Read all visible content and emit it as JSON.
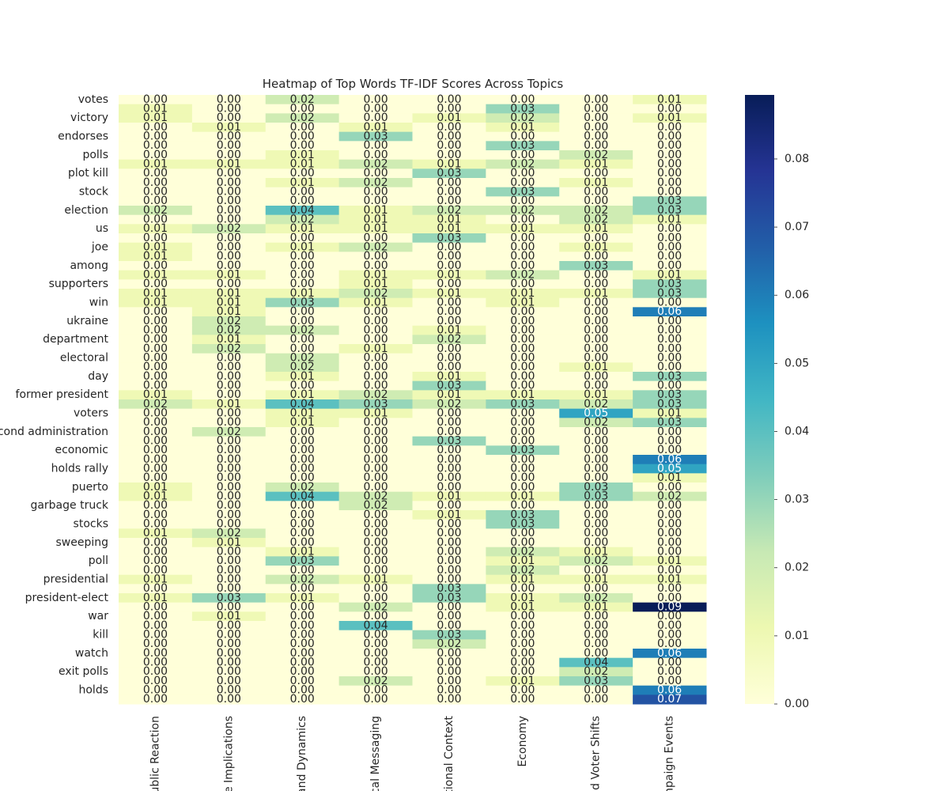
{
  "chart_data": {
    "type": "heatmap",
    "title": "Heatmap of Top Words TF-IDF Scores Across Topics",
    "columns": [
      "ublic Reaction",
      "ce Implications",
      "and Dynamics",
      "cal Messaging",
      "tional Context",
      "Economy",
      "nd Voter Shifts",
      "mpaign Events"
    ],
    "categories": [
      "votes",
      null,
      "victory",
      null,
      "endorses",
      null,
      "polls",
      null,
      "plot kill",
      null,
      "stock",
      null,
      "election",
      null,
      "us",
      null,
      "joe",
      null,
      "among",
      null,
      "supporters",
      null,
      "win",
      null,
      "ukraine",
      null,
      "department",
      null,
      "electoral",
      null,
      "day",
      null,
      "former president",
      null,
      "voters",
      null,
      "econd administration",
      null,
      "economic",
      null,
      "holds rally",
      null,
      "puerto",
      null,
      "garbage truck",
      null,
      "stocks",
      null,
      "sweeping",
      null,
      "poll",
      null,
      "presidential",
      null,
      "president-elect",
      null,
      "war",
      null,
      "kill",
      null,
      "watch",
      null,
      "exit polls",
      null,
      "holds",
      null
    ],
    "values": [
      [
        0,
        0,
        0.02,
        0,
        0,
        0,
        0,
        0.01
      ],
      [
        0.01,
        0,
        0,
        0,
        0,
        0.03,
        0,
        0
      ],
      [
        0.01,
        0,
        0.02,
        0,
        0.01,
        0.02,
        0,
        0.01
      ],
      [
        0,
        0.01,
        0,
        0.01,
        0,
        0.01,
        0,
        0
      ],
      [
        0,
        0,
        0,
        0.03,
        0,
        0,
        0,
        0
      ],
      [
        0,
        0,
        0,
        0,
        0,
        0.03,
        0,
        0
      ],
      [
        0,
        0,
        0.01,
        0,
        0,
        0,
        0.02,
        0
      ],
      [
        0.01,
        0.01,
        0.01,
        0.02,
        0.01,
        0.02,
        0.01,
        0
      ],
      [
        0,
        0,
        0,
        0,
        0.03,
        0,
        0,
        0
      ],
      [
        0,
        0,
        0.01,
        0.02,
        0,
        0,
        0.01,
        0
      ],
      [
        0,
        0,
        0,
        0,
        0,
        0.03,
        0,
        0
      ],
      [
        0,
        0,
        0,
        0,
        0,
        0,
        0,
        0.03
      ],
      [
        0.02,
        0,
        0.04,
        0.01,
        0.02,
        0.02,
        0.02,
        0.03
      ],
      [
        0,
        0,
        0.02,
        0.01,
        0.01,
        0,
        0.02,
        0.01
      ],
      [
        0.01,
        0.02,
        0.01,
        0.01,
        0.01,
        0.01,
        0.01,
        0
      ],
      [
        0,
        0,
        0,
        0,
        0.03,
        0,
        0,
        0
      ],
      [
        0.01,
        0,
        0.01,
        0.02,
        0,
        0,
        0.01,
        0
      ],
      [
        0.01,
        0,
        0,
        0,
        0,
        0,
        0,
        0
      ],
      [
        0,
        0,
        0,
        0,
        0,
        0,
        0.03,
        0
      ],
      [
        0.01,
        0.01,
        0,
        0.01,
        0.01,
        0.02,
        0,
        0.01
      ],
      [
        0,
        0,
        0,
        0.01,
        0,
        0,
        0,
        0.03
      ],
      [
        0.01,
        0.01,
        0.01,
        0.02,
        0.01,
        0.01,
        0.01,
        0.03
      ],
      [
        0.01,
        0.01,
        0.03,
        0.01,
        0,
        0.01,
        0,
        0
      ],
      [
        0,
        0.01,
        0,
        0,
        0,
        0,
        0,
        0.06
      ],
      [
        0,
        0.02,
        0,
        0,
        0,
        0,
        0,
        0
      ],
      [
        0,
        0.02,
        0.02,
        0,
        0.01,
        0,
        0,
        0
      ],
      [
        0,
        0.01,
        0,
        0,
        0.02,
        0,
        0,
        0
      ],
      [
        0,
        0.02,
        0,
        0.01,
        0,
        0,
        0,
        0
      ],
      [
        0,
        0,
        0.02,
        0,
        0,
        0,
        0,
        0
      ],
      [
        0,
        0,
        0.02,
        0,
        0,
        0,
        0.01,
        0
      ],
      [
        0,
        0,
        0.01,
        0,
        0.01,
        0,
        0,
        0.03
      ],
      [
        0,
        0,
        0,
        0,
        0.03,
        0,
        0,
        0
      ],
      [
        0.01,
        0,
        0.01,
        0.02,
        0.01,
        0.01,
        0.01,
        0.03
      ],
      [
        0.02,
        0.01,
        0.04,
        0.03,
        0.02,
        0.03,
        0.02,
        0.03
      ],
      [
        0,
        0,
        0.01,
        0.01,
        0,
        0,
        0.05,
        0.01
      ],
      [
        0,
        0,
        0.01,
        0,
        0,
        0,
        0.02,
        0.03
      ],
      [
        0,
        0.02,
        0,
        0,
        0,
        0,
        0,
        0
      ],
      [
        0,
        0,
        0,
        0,
        0.03,
        0,
        0,
        0
      ],
      [
        0,
        0,
        0,
        0,
        0,
        0.03,
        0,
        0
      ],
      [
        0,
        0,
        0,
        0,
        0,
        0,
        0,
        0.06
      ],
      [
        0,
        0,
        0,
        0,
        0,
        0,
        0,
        0.05
      ],
      [
        0,
        0,
        0,
        0,
        0,
        0,
        0,
        0.01
      ],
      [
        0.01,
        0,
        0.02,
        0,
        0,
        0,
        0.03,
        0
      ],
      [
        0.01,
        0,
        0.04,
        0.02,
        0.01,
        0.01,
        0.03,
        0.02
      ],
      [
        0,
        0,
        0,
        0.02,
        0,
        0,
        0,
        0
      ],
      [
        0,
        0,
        0,
        0,
        0.01,
        0.03,
        0,
        0
      ],
      [
        0,
        0,
        0,
        0,
        0,
        0.03,
        0,
        0
      ],
      [
        0.01,
        0.02,
        0,
        0,
        0,
        0,
        0,
        0
      ],
      [
        0,
        0.01,
        0,
        0,
        0,
        0,
        0,
        0
      ],
      [
        0,
        0,
        0.01,
        0,
        0,
        0.02,
        0.01,
        0
      ],
      [
        0,
        0,
        0.03,
        0,
        0,
        0.01,
        0.02,
        0.01
      ],
      [
        0,
        0,
        0,
        0,
        0,
        0.02,
        0,
        0
      ],
      [
        0.01,
        0,
        0.02,
        0.01,
        0,
        0.01,
        0.01,
        0.01
      ],
      [
        0,
        0,
        0,
        0,
        0.03,
        0,
        0,
        0
      ],
      [
        0.01,
        0.03,
        0.01,
        0,
        0.03,
        0.01,
        0.02,
        0
      ],
      [
        0,
        0,
        0,
        0.02,
        0,
        0.01,
        0.01,
        0.09
      ],
      [
        0,
        0.01,
        0,
        0,
        0,
        0,
        0,
        0
      ],
      [
        0,
        0,
        0,
        0.04,
        0,
        0,
        0,
        0
      ],
      [
        0,
        0,
        0,
        0,
        0.03,
        0,
        0,
        0
      ],
      [
        0,
        0,
        0,
        0,
        0.02,
        0,
        0,
        0
      ],
      [
        0,
        0,
        0,
        0,
        0,
        0,
        0,
        0.06
      ],
      [
        0,
        0,
        0,
        0,
        0,
        0,
        0.04,
        0
      ],
      [
        0,
        0,
        0,
        0,
        0,
        0,
        0.02,
        0
      ],
      [
        0,
        0,
        0,
        0.02,
        0,
        0.01,
        0.03,
        0
      ],
      [
        0,
        0,
        0,
        0,
        0,
        0,
        0,
        0.06
      ],
      [
        0,
        0,
        0,
        0,
        0,
        0,
        0,
        0.07
      ]
    ],
    "value_labels": [
      [
        "0.00",
        "0.00",
        "0.02",
        "0.00",
        "0.00",
        "0.00",
        "0.00",
        "0.01"
      ],
      [
        "0.01",
        "0.00",
        "0.00",
        "0.00",
        "0.00",
        "0.03",
        "0.00",
        "0.00"
      ],
      [
        "0.01",
        "0.00",
        "0.02",
        "0.00",
        "0.01",
        "0.02",
        "0.00",
        "0.01"
      ],
      [
        "0.00",
        "0.01",
        "0.00",
        "0.01",
        "0.00",
        "0.01",
        "0.00",
        "0.00"
      ],
      [
        "0.00",
        "0.00",
        "0.00",
        "0.03",
        "0.00",
        "0.00",
        "0.00",
        "0.00"
      ],
      [
        "0.00",
        "0.00",
        "0.00",
        "0.00",
        "0.00",
        "0.03",
        "0.00",
        "0.00"
      ],
      [
        "0.00",
        "0.00",
        "0.01",
        "0.00",
        "0.00",
        "0.00",
        "0.02",
        "0.00"
      ],
      [
        "0.01",
        "0.01",
        "0.01",
        "0.02",
        "0.01",
        "0.02",
        "0.01",
        "0.00"
      ],
      [
        "0.00",
        "0.00",
        "0.00",
        "0.00",
        "0.03",
        "0.00",
        "0.00",
        "0.00"
      ],
      [
        "0.00",
        "0.00",
        "0.01",
        "0.02",
        "0.00",
        "0.00",
        "0.01",
        "0.00"
      ],
      [
        "0.00",
        "0.00",
        "0.00",
        "0.00",
        "0.00",
        "0.03",
        "0.00",
        "0.00"
      ],
      [
        "0.00",
        "0.00",
        "0.00",
        "0.00",
        "0.00",
        "0.00",
        "0.00",
        "0.03"
      ],
      [
        "0.02",
        "0.00",
        "0.04",
        "0.01",
        "0.02",
        "0.02",
        "0.02",
        "0.03"
      ],
      [
        "0.00",
        "0.00",
        "0.02",
        "0.01",
        "0.01",
        "0.00",
        "0.02",
        "0.01"
      ],
      [
        "0.01",
        "0.02",
        "0.01",
        "0.01",
        "0.01",
        "0.01",
        "0.01",
        "0.00"
      ],
      [
        "0.00",
        "0.00",
        "0.00",
        "0.00",
        "0.03",
        "0.00",
        "0.00",
        "0.00"
      ],
      [
        "0.01",
        "0.00",
        "0.01",
        "0.02",
        "0.00",
        "0.00",
        "0.01",
        "0.00"
      ],
      [
        "0.01",
        "0.00",
        "0.00",
        "0.00",
        "0.00",
        "0.00",
        "0.00",
        "0.00"
      ],
      [
        "0.00",
        "0.00",
        "0.00",
        "0.00",
        "0.00",
        "0.00",
        "0.03",
        "0.00"
      ],
      [
        "0.01",
        "0.01",
        "0.00",
        "0.01",
        "0.01",
        "0.02",
        "0.00",
        "0.01"
      ],
      [
        "0.00",
        "0.00",
        "0.00",
        "0.01",
        "0.00",
        "0.00",
        "0.00",
        "0.03"
      ],
      [
        "0.01",
        "0.01",
        "0.01",
        "0.02",
        "0.01",
        "0.01",
        "0.01",
        "0.03"
      ],
      [
        "0.01",
        "0.01",
        "0.03",
        "0.01",
        "0.00",
        "0.01",
        "0.00",
        "0.00"
      ],
      [
        "0.00",
        "0.01",
        "0.00",
        "0.00",
        "0.00",
        "0.00",
        "0.00",
        "0.06"
      ],
      [
        "0.00",
        "0.02",
        "0.00",
        "0.00",
        "0.00",
        "0.00",
        "0.00",
        "0.00"
      ],
      [
        "0.00",
        "0.02",
        "0.02",
        "0.00",
        "0.01",
        "0.00",
        "0.00",
        "0.00"
      ],
      [
        "0.00",
        "0.01",
        "0.00",
        "0.00",
        "0.02",
        "0.00",
        "0.00",
        "0.00"
      ],
      [
        "0.00",
        "0.02",
        "0.00",
        "0.01",
        "0.00",
        "0.00",
        "0.00",
        "0.00"
      ],
      [
        "0.00",
        "0.00",
        "0.02",
        "0.00",
        "0.00",
        "0.00",
        "0.00",
        "0.00"
      ],
      [
        "0.00",
        "0.00",
        "0.02",
        "0.00",
        "0.00",
        "0.00",
        "0.01",
        "0.00"
      ],
      [
        "0.00",
        "0.00",
        "0.01",
        "0.00",
        "0.01",
        "0.00",
        "0.00",
        "0.03"
      ],
      [
        "0.00",
        "0.00",
        "0.00",
        "0.00",
        "0.03",
        "0.00",
        "0.00",
        "0.00"
      ],
      [
        "0.01",
        "0.00",
        "0.01",
        "0.02",
        "0.01",
        "0.01",
        "0.01",
        "0.03"
      ],
      [
        "0.02",
        "0.01",
        "0.04",
        "0.03",
        "0.02",
        "0.03",
        "0.02",
        "0.03"
      ],
      [
        "0.00",
        "0.00",
        "0.01",
        "0.01",
        "0.00",
        "0.00",
        "0.05",
        "0.01"
      ],
      [
        "0.00",
        "0.00",
        "0.01",
        "0.00",
        "0.00",
        "0.00",
        "0.02",
        "0.03"
      ],
      [
        "0.00",
        "0.02",
        "0.00",
        "0.00",
        "0.00",
        "0.00",
        "0.00",
        "0.00"
      ],
      [
        "0.00",
        "0.00",
        "0.00",
        "0.00",
        "0.03",
        "0.00",
        "0.00",
        "0.00"
      ],
      [
        "0.00",
        "0.00",
        "0.00",
        "0.00",
        "0.00",
        "0.03",
        "0.00",
        "0.00"
      ],
      [
        "0.00",
        "0.00",
        "0.00",
        "0.00",
        "0.00",
        "0.00",
        "0.00",
        "0.06"
      ],
      [
        "0.00",
        "0.00",
        "0.00",
        "0.00",
        "0.00",
        "0.00",
        "0.00",
        "0.05"
      ],
      [
        "0.00",
        "0.00",
        "0.00",
        "0.00",
        "0.00",
        "0.00",
        "0.00",
        "0.01"
      ],
      [
        "0.01",
        "0.00",
        "0.02",
        "0.00",
        "0.00",
        "0.00",
        "0.03",
        "0.00"
      ],
      [
        "0.01",
        "0.00",
        "0.04",
        "0.02",
        "0.01",
        "0.01",
        "0.03",
        "0.02"
      ],
      [
        "0.00",
        "0.00",
        "0.00",
        "0.02",
        "0.00",
        "0.00",
        "0.00",
        "0.00"
      ],
      [
        "0.00",
        "0.00",
        "0.00",
        "0.00",
        "0.01",
        "0.03",
        "0.00",
        "0.00"
      ],
      [
        "0.00",
        "0.00",
        "0.00",
        "0.00",
        "0.00",
        "0.03",
        "0.00",
        "0.00"
      ],
      [
        "0.01",
        "0.02",
        "0.00",
        "0.00",
        "0.00",
        "0.00",
        "0.00",
        "0.00"
      ],
      [
        "0.00",
        "0.01",
        "0.00",
        "0.00",
        "0.00",
        "0.00",
        "0.00",
        "0.00"
      ],
      [
        "0.00",
        "0.00",
        "0.01",
        "0.00",
        "0.00",
        "0.02",
        "0.01",
        "0.00"
      ],
      [
        "0.00",
        "0.00",
        "0.03",
        "0.00",
        "0.00",
        "0.01",
        "0.02",
        "0.01"
      ],
      [
        "0.00",
        "0.00",
        "0.00",
        "0.00",
        "0.00",
        "0.02",
        "0.00",
        "0.00"
      ],
      [
        "0.01",
        "0.00",
        "0.02",
        "0.01",
        "0.00",
        "0.01",
        "0.01",
        "0.01"
      ],
      [
        "0.00",
        "0.00",
        "0.00",
        "0.00",
        "0.03",
        "0.00",
        "0.00",
        "0.00"
      ],
      [
        "0.01",
        "0.03",
        "0.01",
        "0.00",
        "0.03",
        "0.01",
        "0.02",
        "0.00"
      ],
      [
        "0.00",
        "0.00",
        "0.00",
        "0.02",
        "0.00",
        "0.01",
        "0.01",
        "0.09"
      ],
      [
        "0.00",
        "0.01",
        "0.00",
        "0.00",
        "0.00",
        "0.00",
        "0.00",
        "0.00"
      ],
      [
        "0.00",
        "0.00",
        "0.00",
        "0.04",
        "0.00",
        "0.00",
        "0.00",
        "0.00"
      ],
      [
        "0.00",
        "0.00",
        "0.00",
        "0.00",
        "0.03",
        "0.00",
        "0.00",
        "0.00"
      ],
      [
        "0.00",
        "0.00",
        "0.00",
        "0.00",
        "0.02",
        "0.00",
        "0.00",
        "0.00"
      ],
      [
        "0.00",
        "0.00",
        "0.00",
        "0.00",
        "0.00",
        "0.00",
        "0.00",
        "0.06"
      ],
      [
        "0.00",
        "0.00",
        "0.00",
        "0.00",
        "0.00",
        "0.00",
        "0.04",
        "0.00"
      ],
      [
        "0.00",
        "0.00",
        "0.00",
        "0.00",
        "0.00",
        "0.00",
        "0.02",
        "0.00"
      ],
      [
        "0.00",
        "0.00",
        "0.00",
        "0.02",
        "0.00",
        "0.01",
        "0.03",
        "0.00"
      ],
      [
        "0.00",
        "0.00",
        "0.00",
        "0.00",
        "0.00",
        "0.00",
        "0.00",
        "0.06"
      ],
      [
        "0.00",
        "0.00",
        "0.00",
        "0.00",
        "0.00",
        "0.00",
        "0.00",
        "0.07"
      ]
    ],
    "colormap": "YlGnBu",
    "clim": [
      0,
      0.0894
    ],
    "cticks": [
      {
        "value": 0,
        "label": "0.00"
      },
      {
        "value": 0.01,
        "label": "0.01"
      },
      {
        "value": 0.02,
        "label": "0.02"
      },
      {
        "value": 0.03,
        "label": "0.03"
      },
      {
        "value": 0.04,
        "label": "0.04"
      },
      {
        "value": 0.05,
        "label": "0.05"
      },
      {
        "value": 0.06,
        "label": "0.06"
      },
      {
        "value": 0.07,
        "label": "0.07"
      },
      {
        "value": 0.08,
        "label": "0.08"
      }
    ]
  }
}
